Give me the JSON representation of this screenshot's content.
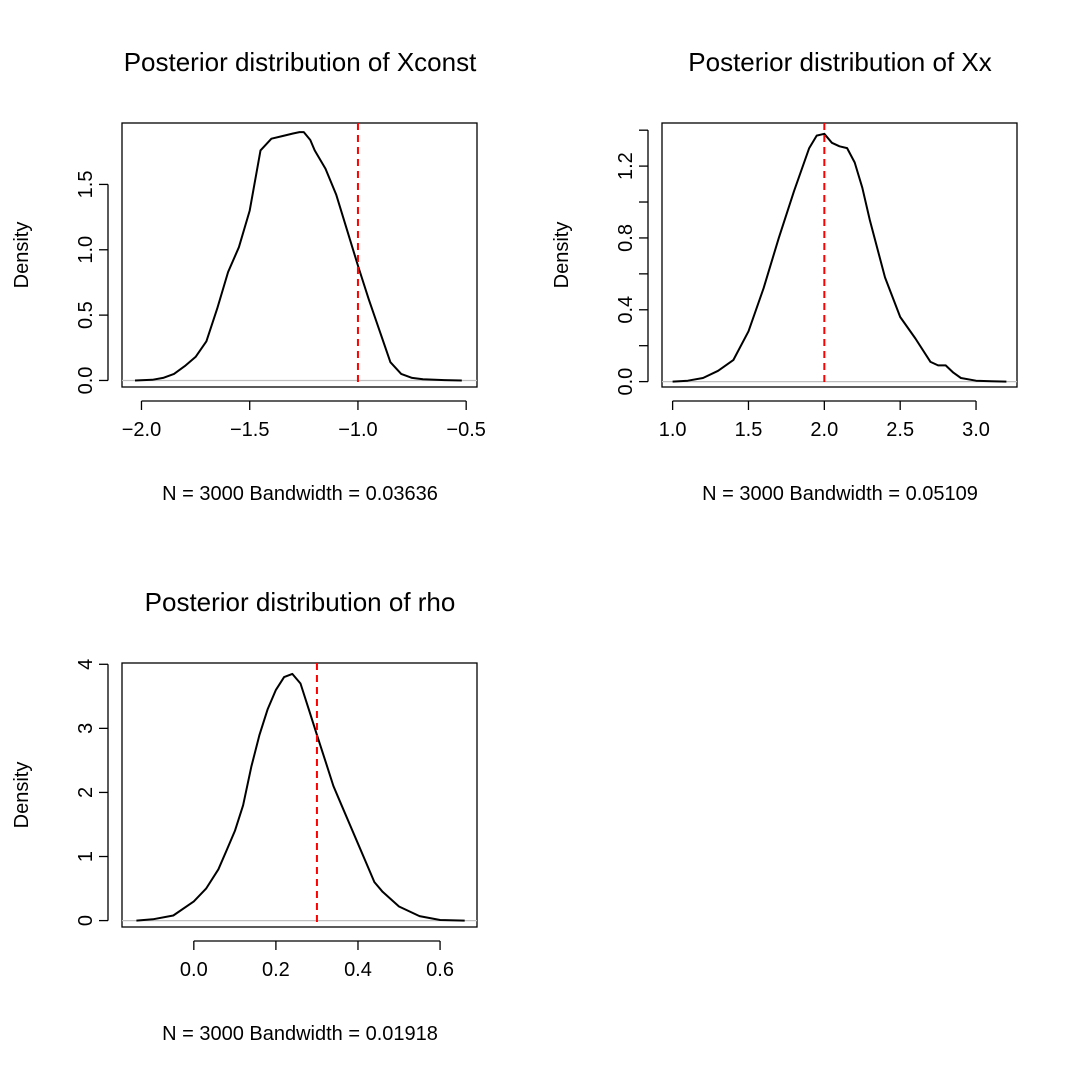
{
  "chart_data": [
    {
      "type": "line",
      "title": "Posterior distribution of Xconst",
      "xlabel": "N = 3000   Bandwidth = 0.03636",
      "ylabel": "Density",
      "xlim": [
        -2.09,
        -0.45
      ],
      "ylim": [
        -0.05,
        1.97
      ],
      "xticks": [
        -2.0,
        -1.5,
        -1.0,
        -0.5
      ],
      "xtick_labels": [
        "−2.0",
        "−1.5",
        "−1.0",
        "−0.5"
      ],
      "yticks": [
        0.0,
        0.5,
        1.0,
        1.5
      ],
      "ytick_labels": [
        "0.0",
        "0.5",
        "1.0",
        "1.5"
      ],
      "x": [
        -2.03,
        -1.95,
        -1.9,
        -1.85,
        -1.8,
        -1.75,
        -1.7,
        -1.65,
        -1.6,
        -1.55,
        -1.5,
        -1.45,
        -1.4,
        -1.35,
        -1.3,
        -1.27,
        -1.25,
        -1.22,
        -1.2,
        -1.15,
        -1.1,
        -1.05,
        -1.0,
        -0.95,
        -0.9,
        -0.85,
        -0.8,
        -0.75,
        -0.7,
        -0.6,
        -0.52
      ],
      "y": [
        0.0,
        0.005,
        0.02,
        0.05,
        0.11,
        0.18,
        0.3,
        0.55,
        0.83,
        1.02,
        1.3,
        1.76,
        1.85,
        1.87,
        1.89,
        1.9,
        1.9,
        1.84,
        1.76,
        1.62,
        1.42,
        1.15,
        0.88,
        0.62,
        0.38,
        0.14,
        0.05,
        0.02,
        0.01,
        0.003,
        0.0
      ],
      "reference_line": -1.0,
      "reference_color": "#ff0000"
    },
    {
      "type": "line",
      "title": "Posterior distribution of Xx",
      "xlabel": "N = 3000   Bandwidth = 0.05109",
      "ylabel": "Density",
      "xlim": [
        0.93,
        3.27
      ],
      "ylim": [
        -0.03,
        1.44
      ],
      "xticks": [
        1.0,
        1.5,
        2.0,
        2.5,
        3.0
      ],
      "xtick_labels": [
        "1.0",
        "1.5",
        "2.0",
        "2.5",
        "3.0"
      ],
      "yticks": [
        0.0,
        0.2,
        0.4,
        0.6,
        0.8,
        1.0,
        1.2,
        1.4
      ],
      "ytick_labels": [
        "0.0",
        "",
        "0.4",
        "",
        "0.8",
        "",
        "1.2",
        ""
      ],
      "x": [
        1.0,
        1.1,
        1.2,
        1.3,
        1.4,
        1.5,
        1.6,
        1.7,
        1.8,
        1.9,
        1.95,
        2.0,
        2.05,
        2.1,
        2.15,
        2.2,
        2.25,
        2.3,
        2.4,
        2.5,
        2.6,
        2.7,
        2.75,
        2.8,
        2.85,
        2.9,
        3.0,
        3.1,
        3.2
      ],
      "y": [
        0.0,
        0.005,
        0.02,
        0.06,
        0.12,
        0.28,
        0.52,
        0.8,
        1.06,
        1.3,
        1.37,
        1.38,
        1.33,
        1.31,
        1.3,
        1.22,
        1.08,
        0.9,
        0.58,
        0.36,
        0.24,
        0.11,
        0.09,
        0.09,
        0.05,
        0.02,
        0.005,
        0.002,
        0.0
      ],
      "reference_line": 2.0,
      "reference_color": "#ff0000"
    },
    {
      "type": "line",
      "title": "Posterior distribution of rho",
      "xlabel": "N = 3000   Bandwidth = 0.01918",
      "ylabel": "Density",
      "xlim": [
        -0.175,
        0.69
      ],
      "ylim": [
        -0.1,
        4.02
      ],
      "xticks": [
        0.0,
        0.2,
        0.4,
        0.6
      ],
      "xtick_labels": [
        "0.0",
        "0.2",
        "0.4",
        "0.6"
      ],
      "yticks": [
        0,
        1,
        2,
        3,
        4
      ],
      "ytick_labels": [
        "0",
        "1",
        "2",
        "3",
        "4"
      ],
      "x": [
        -0.14,
        -0.1,
        -0.05,
        0.0,
        0.03,
        0.06,
        0.08,
        0.1,
        0.12,
        0.14,
        0.16,
        0.18,
        0.2,
        0.22,
        0.24,
        0.26,
        0.28,
        0.3,
        0.32,
        0.34,
        0.36,
        0.38,
        0.4,
        0.42,
        0.44,
        0.46,
        0.5,
        0.55,
        0.6,
        0.66
      ],
      "y": [
        0.0,
        0.02,
        0.08,
        0.3,
        0.5,
        0.8,
        1.1,
        1.4,
        1.8,
        2.4,
        2.9,
        3.3,
        3.6,
        3.8,
        3.85,
        3.7,
        3.3,
        2.9,
        2.5,
        2.1,
        1.8,
        1.5,
        1.2,
        0.9,
        0.6,
        0.45,
        0.22,
        0.07,
        0.01,
        0.0
      ],
      "reference_line": 0.3,
      "reference_color": "#ff0000"
    }
  ]
}
